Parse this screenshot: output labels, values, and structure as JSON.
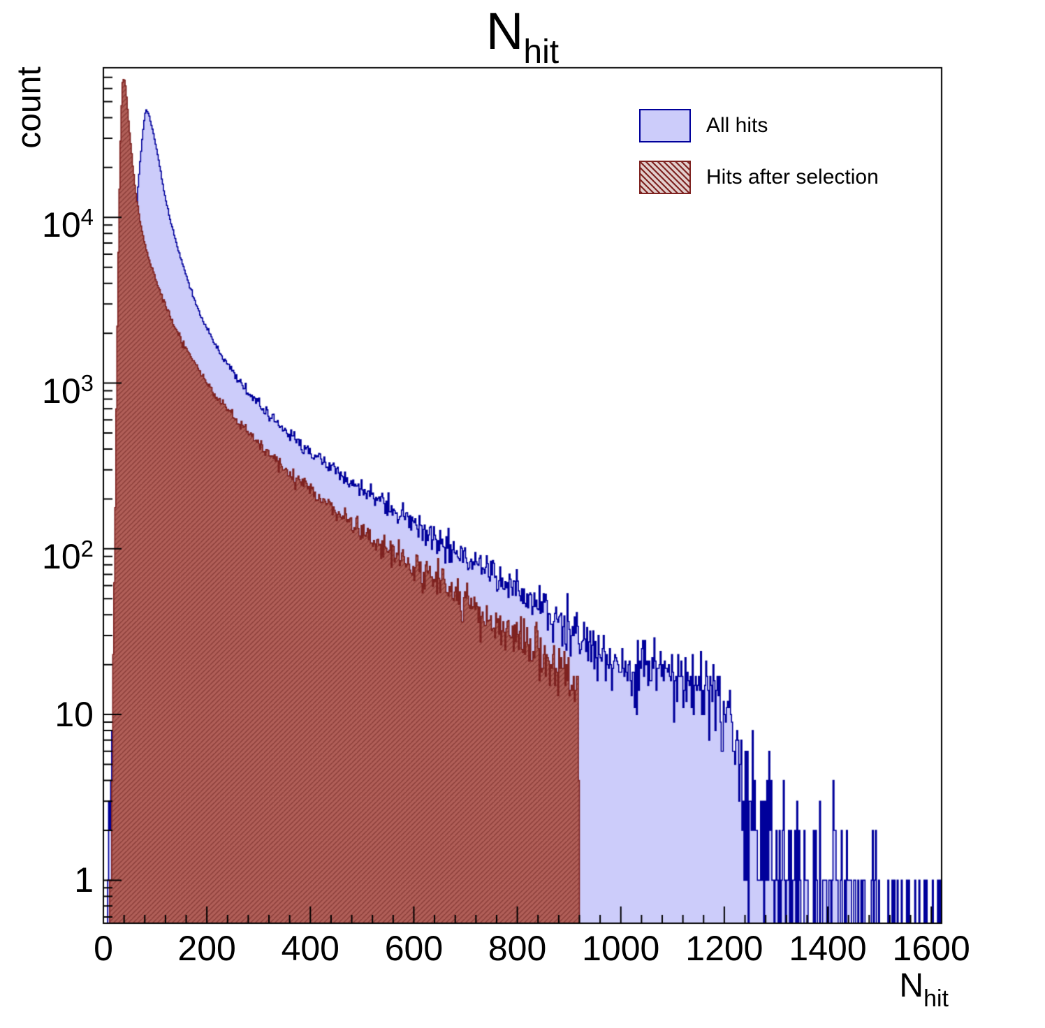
{
  "chart_data": {
    "type": "histogram",
    "title_main": "N",
    "title_sub": "hit",
    "xlabel_main": "N",
    "xlabel_sub": "hit",
    "ylabel": "count",
    "y_scale": "log",
    "x_range": [
      0,
      1620
    ],
    "y_range": [
      0.55,
      80000
    ],
    "bin_width": 2,
    "noise_seed": 9,
    "x_ticks_major": [
      0,
      200,
      400,
      600,
      800,
      1000,
      1200,
      1400,
      1600
    ],
    "x_tick_labels": [
      "0",
      "200",
      "400",
      "600",
      "800",
      "1000",
      "1200",
      "1400",
      "1600"
    ],
    "x_minor_step": 40,
    "y_tick_values": [
      1,
      10,
      100,
      1000,
      10000
    ],
    "y_tick_labels": [
      {
        "text": "1",
        "exp": ""
      },
      {
        "text": "10",
        "exp": ""
      },
      {
        "text": "10",
        "exp": "2"
      },
      {
        "text": "10",
        "exp": "3"
      },
      {
        "text": "10",
        "exp": "4"
      }
    ],
    "colors": {
      "frame": "#000000"
    },
    "series": [
      {
        "name": "All hits",
        "fill_color": "#ccccfa",
        "line_color": "#00009b",
        "hatch": false,
        "peak": {
          "x": 82,
          "y": 45000
        },
        "anchors": [
          [
            6,
            0.5
          ],
          [
            12,
            2
          ],
          [
            20,
            8
          ],
          [
            28,
            30
          ],
          [
            36,
            120
          ],
          [
            44,
            500
          ],
          [
            52,
            2000
          ],
          [
            60,
            7000
          ],
          [
            68,
            17000
          ],
          [
            76,
            32000
          ],
          [
            82,
            45000
          ],
          [
            88,
            42000
          ],
          [
            96,
            33000
          ],
          [
            104,
            25000
          ],
          [
            112,
            18000
          ],
          [
            120,
            13000
          ],
          [
            130,
            9500
          ],
          [
            140,
            7200
          ],
          [
            152,
            5300
          ],
          [
            164,
            4100
          ],
          [
            176,
            3200
          ],
          [
            190,
            2500
          ],
          [
            205,
            2000
          ],
          [
            220,
            1650
          ],
          [
            240,
            1300
          ],
          [
            260,
            1050
          ],
          [
            280,
            880
          ],
          [
            300,
            750
          ],
          [
            320,
            640
          ],
          [
            340,
            560
          ],
          [
            365,
            480
          ],
          [
            390,
            410
          ],
          [
            420,
            345
          ],
          [
            450,
            295
          ],
          [
            480,
            252
          ],
          [
            510,
            215
          ],
          [
            540,
            185
          ],
          [
            570,
            160
          ],
          [
            600,
            140
          ],
          [
            630,
            121
          ],
          [
            660,
            105
          ],
          [
            690,
            92
          ],
          [
            720,
            80
          ],
          [
            750,
            70
          ],
          [
            780,
            61
          ],
          [
            810,
            53
          ],
          [
            840,
            46
          ],
          [
            870,
            40
          ],
          [
            900,
            34
          ],
          [
            930,
            28
          ],
          [
            960,
            24
          ],
          [
            990,
            21
          ],
          [
            1020,
            19
          ],
          [
            1060,
            18
          ],
          [
            1100,
            17
          ],
          [
            1140,
            15
          ],
          [
            1180,
            13
          ],
          [
            1210,
            9
          ],
          [
            1240,
            4
          ],
          [
            1270,
            2
          ],
          [
            1310,
            1.1
          ],
          [
            1360,
            0.8
          ],
          [
            1410,
            0.9
          ],
          [
            1460,
            0.5
          ],
          [
            1520,
            0.4
          ],
          [
            1570,
            0.35
          ],
          [
            1618,
            0.6
          ]
        ]
      },
      {
        "name": "Hits after selection",
        "fill_color": "#b05f58",
        "line_color": "#7e2220",
        "hatch": true,
        "hatch_color": "#5e1512",
        "legend_hatch_bg": "#e2cecc",
        "peak": {
          "x": 40,
          "y": 70000
        },
        "cutoff_x": 920,
        "anchors": [
          [
            13,
            0.5
          ],
          [
            16,
            3
          ],
          [
            20,
            30
          ],
          [
            24,
            400
          ],
          [
            28,
            4000
          ],
          [
            31,
            15000
          ],
          [
            34,
            40000
          ],
          [
            37,
            65000
          ],
          [
            40,
            70000
          ],
          [
            43,
            62000
          ],
          [
            47,
            45000
          ],
          [
            52,
            30000
          ],
          [
            58,
            19000
          ],
          [
            64,
            13000
          ],
          [
            72,
            9200
          ],
          [
            80,
            7000
          ],
          [
            90,
            5300
          ],
          [
            100,
            4300
          ],
          [
            112,
            3400
          ],
          [
            124,
            2750
          ],
          [
            136,
            2250
          ],
          [
            150,
            1850
          ],
          [
            165,
            1500
          ],
          [
            180,
            1250
          ],
          [
            200,
            1000
          ],
          [
            220,
            830
          ],
          [
            240,
            700
          ],
          [
            260,
            590
          ],
          [
            280,
            500
          ],
          [
            300,
            430
          ],
          [
            325,
            360
          ],
          [
            350,
            305
          ],
          [
            375,
            262
          ],
          [
            400,
            225
          ],
          [
            430,
            190
          ],
          [
            460,
            160
          ],
          [
            490,
            137
          ],
          [
            520,
            117
          ],
          [
            550,
            100
          ],
          [
            580,
            86
          ],
          [
            610,
            74
          ],
          [
            640,
            64
          ],
          [
            670,
            55
          ],
          [
            700,
            47
          ],
          [
            730,
            41
          ],
          [
            760,
            35
          ],
          [
            790,
            30
          ],
          [
            820,
            26
          ],
          [
            850,
            22
          ],
          [
            880,
            19
          ],
          [
            900,
            17
          ],
          [
            912,
            15
          ],
          [
            918,
            12
          ],
          [
            920,
            0
          ]
        ]
      }
    ],
    "legend_position": "top-right"
  }
}
